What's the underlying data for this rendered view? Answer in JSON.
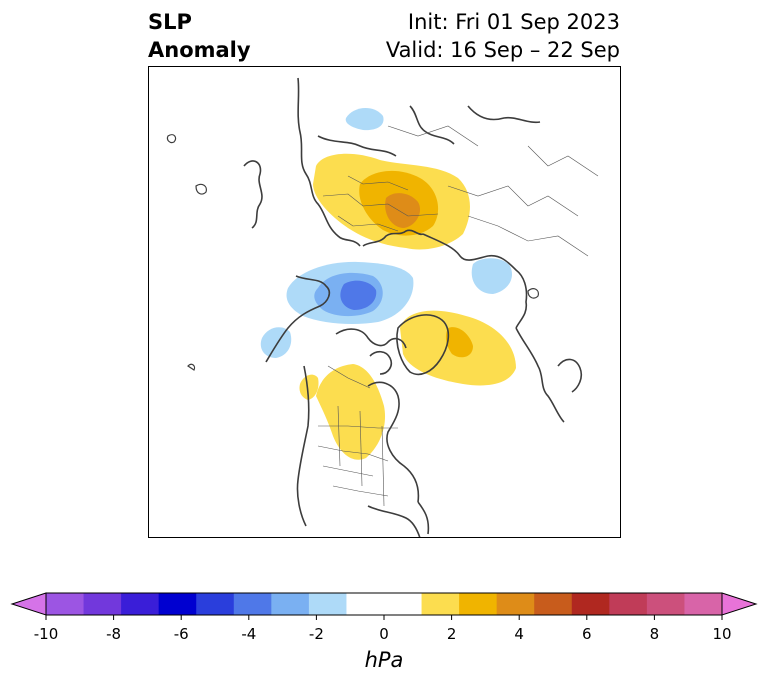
{
  "title": {
    "left_line1": "SLP",
    "left_line2": "Anomaly",
    "right_line1": "Init: Fri 01 Sep 2023",
    "right_line2": "Valid: 16 Sep – 22 Sep"
  },
  "colorbar": {
    "unit_label": "hPa",
    "ticks": [
      "-10",
      "-8",
      "-6",
      "-4",
      "-2",
      "0",
      "2",
      "4",
      "6",
      "8",
      "10"
    ],
    "colors": [
      "#d573e8",
      "#9c55e3",
      "#7238dc",
      "#3a1ed8",
      "#0000d0",
      "#2a3edc",
      "#4f78e8",
      "#7ab0f2",
      "#aedaf8",
      "#ffffff",
      "#ffffff",
      "#fcdd4f",
      "#f0b400",
      "#de8c18",
      "#c85c1c",
      "#b02820",
      "#c03c58",
      "#cc507c",
      "#d864a8",
      "#e873d8"
    ]
  },
  "map": {
    "projection": "north-polar-stereographic",
    "anomalies": [
      {
        "name": "positive-anomaly-eurasia",
        "sign": "positive",
        "max_hpa": 4
      },
      {
        "name": "positive-anomaly-greenland",
        "sign": "positive",
        "max_hpa": 4
      },
      {
        "name": "positive-anomaly-north-america",
        "sign": "positive",
        "max_hpa": 2
      },
      {
        "name": "negative-anomaly-siberia-alaska",
        "sign": "negative",
        "max_hpa": -4
      },
      {
        "name": "negative-anomaly-north-pacific",
        "sign": "negative",
        "max_hpa": -2
      },
      {
        "name": "negative-anomaly-kara-sea",
        "sign": "negative",
        "max_hpa": -2
      },
      {
        "name": "negative-anomaly-mediterranean",
        "sign": "negative",
        "max_hpa": -2
      }
    ]
  }
}
